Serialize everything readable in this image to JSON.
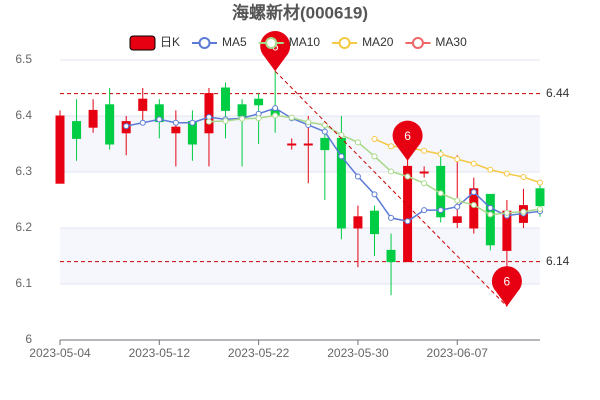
{
  "chart_data": {
    "type": "candlestick",
    "title": "海螺新材(000619)",
    "categories": [
      "2023-05-04",
      null,
      null,
      null,
      null,
      null,
      "2023-05-12",
      null,
      null,
      null,
      null,
      null,
      "2023-05-22",
      null,
      null,
      null,
      null,
      null,
      "2023-05-30",
      null,
      null,
      null,
      null,
      null,
      "2023-06-07",
      null,
      null,
      null,
      null,
      null
    ],
    "candles": {
      "name": "日K",
      "up_color": "#e60012",
      "down_color": "#00cc44",
      "open": [
        6.28,
        6.39,
        6.38,
        6.42,
        6.37,
        6.41,
        6.42,
        6.37,
        6.39,
        6.37,
        6.45,
        6.42,
        6.43,
        6.41,
        6.35,
        6.35,
        6.36,
        6.36,
        6.2,
        6.23,
        6.16,
        6.14,
        6.3,
        6.31,
        6.21,
        6.2,
        6.26,
        6.16,
        6.21,
        6.27
      ],
      "close": [
        6.4,
        6.36,
        6.41,
        6.35,
        6.39,
        6.43,
        6.39,
        6.38,
        6.35,
        6.44,
        6.41,
        6.4,
        6.42,
        6.4,
        6.35,
        6.35,
        6.34,
        6.2,
        6.22,
        6.19,
        6.14,
        6.31,
        6.3,
        6.22,
        6.22,
        6.27,
        6.17,
        6.23,
        6.24,
        6.24
      ],
      "high": [
        6.41,
        6.43,
        6.43,
        6.45,
        6.4,
        6.45,
        6.43,
        6.41,
        6.41,
        6.45,
        6.46,
        6.43,
        6.44,
        6.48,
        6.36,
        6.4,
        6.39,
        6.4,
        6.24,
        6.24,
        6.19,
        6.34,
        6.31,
        6.34,
        6.33,
        6.29,
        6.26,
        6.25,
        6.27,
        6.28
      ],
      "low": [
        6.28,
        6.32,
        6.37,
        6.34,
        6.33,
        6.39,
        6.36,
        6.31,
        6.32,
        6.31,
        6.36,
        6.31,
        6.35,
        6.37,
        6.34,
        6.28,
        6.25,
        6.18,
        6.13,
        6.15,
        6.08,
        6.14,
        6.29,
        6.21,
        6.2,
        6.19,
        6.16,
        6.06,
        6.2,
        6.22
      ]
    },
    "series": [
      {
        "name": "MA5",
        "color": "#5b7bd5",
        "values": [
          null,
          null,
          null,
          null,
          6.382,
          6.388,
          6.394,
          6.388,
          6.388,
          6.398,
          6.394,
          6.396,
          6.404,
          6.414,
          6.396,
          6.384,
          6.372,
          6.328,
          6.292,
          6.26,
          6.218,
          6.212,
          6.232,
          6.232,
          6.238,
          6.264,
          6.236,
          6.222,
          6.226,
          6.23
        ]
      },
      {
        "name": "MA10",
        "color": "#a8d88a",
        "values": [
          null,
          null,
          null,
          null,
          null,
          null,
          null,
          null,
          null,
          6.39,
          6.391,
          6.395,
          6.396,
          6.401,
          6.397,
          6.389,
          6.384,
          6.366,
          6.353,
          6.328,
          6.301,
          6.292,
          6.28,
          6.262,
          6.249,
          6.241,
          6.224,
          6.227,
          6.229,
          6.234
        ]
      },
      {
        "name": "MA20",
        "color": "#f5c842",
        "values": [
          null,
          null,
          null,
          null,
          null,
          null,
          null,
          null,
          null,
          null,
          null,
          null,
          null,
          null,
          null,
          null,
          null,
          null,
          null,
          6.359,
          6.346,
          6.344,
          6.338,
          6.332,
          6.323,
          6.315,
          6.304,
          6.297,
          6.291,
          6.281
        ]
      },
      {
        "name": "MA30",
        "color": "#ee6666",
        "values": [
          null,
          null,
          null,
          null,
          null,
          null,
          null,
          null,
          null,
          null,
          null,
          null,
          null,
          null,
          null,
          null,
          null,
          null,
          null,
          null,
          null,
          null,
          null,
          null,
          null,
          null,
          null,
          null,
          null,
          null
        ]
      }
    ],
    "reference_lines": [
      6.44,
      6.14
    ],
    "mark_points": [
      {
        "index": 13,
        "value": 6.48,
        "label": "6"
      },
      {
        "index": 21,
        "value": 6.32,
        "label": "6"
      },
      {
        "index": 27,
        "value": 6.06,
        "label": "6"
      }
    ],
    "ylim": [
      6,
      6.5
    ],
    "yticks": [
      6,
      6.1,
      6.2,
      6.3,
      6.4,
      6.5
    ],
    "grid": true
  }
}
